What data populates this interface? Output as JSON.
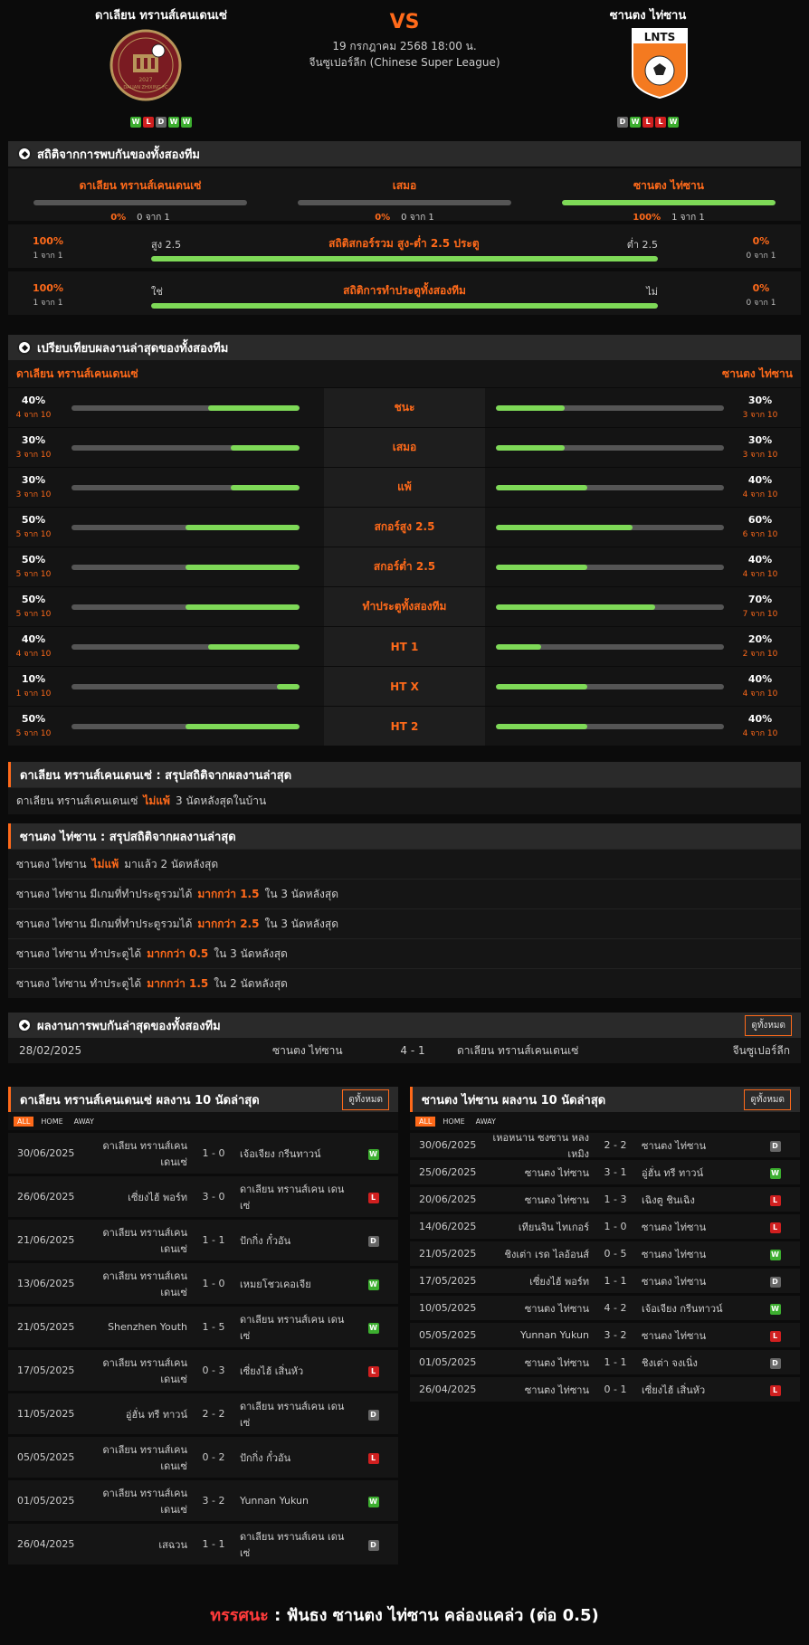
{
  "header": {
    "home": {
      "name": "ดาเลียน ทรานส์เคนเดนเซ่",
      "logo_text": "DALIAN ZHIXING FC",
      "logo_year": "2027",
      "form": [
        "W",
        "L",
        "D",
        "W",
        "W"
      ]
    },
    "away": {
      "name": "ซานตง ไท่ซาน",
      "logo_text": "LNTS",
      "form": [
        "D",
        "W",
        "L",
        "L",
        "W"
      ]
    },
    "vs": "VS",
    "date": "19 กรกฎาคม 2568 18:00 น.",
    "league": "จีนซูเปอร์ลีก (Chinese Super League)"
  },
  "h2h_stats": {
    "title": "สถิติจากการพบกันของทั้งสองทีม",
    "columns": [
      {
        "label": "ดาเลียน ทรานส์เคนเดนเซ่",
        "pct": "0%",
        "count": "0 จาก 1",
        "fill": 0
      },
      {
        "label": "เสมอ",
        "pct": "0%",
        "count": "0 จาก 1",
        "fill": 0
      },
      {
        "label": "ซานตง ไท่ซาน",
        "pct": "100%",
        "count": "1 จาก 1",
        "fill": 100
      }
    ],
    "ou": {
      "left_pct": "100%",
      "left_sub": "1 จาก 1",
      "left_label": "สูง 2.5",
      "center": "สถิติสกอร์รวม สูง-ต่ำ 2.5 ประตู",
      "right_label": "ต่ำ 2.5",
      "right_pct": "0%",
      "right_sub": "0 จาก 1",
      "fill": 100
    },
    "btts": {
      "left_pct": "100%",
      "left_sub": "1 จาก 1",
      "left_label": "ใช่",
      "center": "สถิติการทำประตูทั้งสองทีม",
      "right_label": "ไม่",
      "right_pct": "0%",
      "right_sub": "0 จาก 1",
      "fill": 100
    }
  },
  "compare": {
    "title": "เปรียบเทียบผลงานล่าสุดของทั้งสองทีม",
    "home_name": "ดาเลียน ทรานส์เคนเดนเซ่",
    "away_name": "ซานตง ไท่ซาน",
    "rows": [
      {
        "label": "ชนะ",
        "hp": "40%",
        "hs": "4 จาก 10",
        "hv": 40,
        "ap": "30%",
        "as": "3 จาก 10",
        "av": 30
      },
      {
        "label": "เสมอ",
        "hp": "30%",
        "hs": "3 จาก 10",
        "hv": 30,
        "ap": "30%",
        "as": "3 จาก 10",
        "av": 30
      },
      {
        "label": "แพ้",
        "hp": "30%",
        "hs": "3 จาก 10",
        "hv": 30,
        "ap": "40%",
        "as": "4 จาก 10",
        "av": 40
      },
      {
        "label": "สกอร์สูง 2.5",
        "hp": "50%",
        "hs": "5 จาก 10",
        "hv": 50,
        "ap": "60%",
        "as": "6 จาก 10",
        "av": 60
      },
      {
        "label": "สกอร์ต่ำ 2.5",
        "hp": "50%",
        "hs": "5 จาก 10",
        "hv": 50,
        "ap": "40%",
        "as": "4 จาก 10",
        "av": 40
      },
      {
        "label": "ทำประตูทั้งสองทีม",
        "hp": "50%",
        "hs": "5 จาก 10",
        "hv": 50,
        "ap": "70%",
        "as": "7 จาก 10",
        "av": 70
      },
      {
        "label": "HT 1",
        "hp": "40%",
        "hs": "4 จาก 10",
        "hv": 40,
        "ap": "20%",
        "as": "2 จาก 10",
        "av": 20
      },
      {
        "label": "HT X",
        "hp": "10%",
        "hs": "1 จาก 10",
        "hv": 10,
        "ap": "40%",
        "as": "4 จาก 10",
        "av": 40
      },
      {
        "label": "HT 2",
        "hp": "50%",
        "hs": "5 จาก 10",
        "hv": 50,
        "ap": "40%",
        "as": "4 จาก 10",
        "av": 40
      }
    ]
  },
  "home_summary": {
    "title": "ดาเลียน ทรานส์เคนเดนเซ่ : สรุปสถิติจากผลงานล่าสุด",
    "lines": [
      {
        "pre": "ดาเลียน ทรานส์เคนเดนเซ่",
        "hl": "ไม่แพ้",
        "post": "3  นัดหลังสุดในบ้าน"
      }
    ]
  },
  "away_summary": {
    "title": "ซานตง ไท่ซาน : สรุปสถิติจากผลงานล่าสุด",
    "lines": [
      {
        "pre": "ซานตง ไท่ซาน",
        "hl": "ไม่แพ้",
        "post": "มาแล้ว 2 นัดหลังสุด"
      },
      {
        "pre": "ซานตง ไท่ซาน  มีเกมที่ทำประตูรวมได้",
        "hl": "มากกว่า  1.5",
        "post": "ใน 3 นัดหลังสุด"
      },
      {
        "pre": "ซานตง ไท่ซาน  มีเกมที่ทำประตูรวมได้",
        "hl": "มากกว่า  2.5",
        "post": "ใน 3 นัดหลังสุด"
      },
      {
        "pre": "ซานตง ไท่ซาน  ทำประตูได้",
        "hl": "มากกว่า  0.5",
        "post": "ใน 3 นัดหลังสุด"
      },
      {
        "pre": "ซานตง ไท่ซาน  ทำประตูได้",
        "hl": "มากกว่า  1.5",
        "post": "ใน 2 นัดหลังสุด"
      }
    ]
  },
  "h2h_results": {
    "title": "ผลงานการพบกันล่าสุดของทั้งสองทีม",
    "view_all": "ดูทั้งหมด",
    "rows": [
      {
        "date": "28/02/2025",
        "home": "ซานตง ไท่ซาน",
        "score": "4 - 1",
        "away": "ดาเลียน ทรานส์เคนเดนเซ่",
        "league": "จีนซูเปอร์ลีก"
      }
    ]
  },
  "home_last10": {
    "title": "ดาเลียน ทรานส์เคนเดนเซ่ ผลงาน 10 นัดล่าสุด",
    "view_all": "ดูทั้งหมด",
    "filters": [
      "ALL",
      "HOME",
      "AWAY"
    ],
    "rows": [
      {
        "date": "30/06/2025",
        "home": "ดาเลียน ทรานส์เคน เดนเซ่",
        "score": "1 - 0",
        "away": "เจ้อเจียง กรีนทาวน์",
        "res": "W"
      },
      {
        "date": "26/06/2025",
        "home": "เซี่ยงไฮ้ พอร์ท",
        "score": "3 - 0",
        "away": "ดาเลียน ทรานส์เคน เดนเซ่",
        "res": "L"
      },
      {
        "date": "21/06/2025",
        "home": "ดาเลียน ทรานส์เคน เดนเซ่",
        "score": "1 - 1",
        "away": "ปักกิ่ง กั๋วอัน",
        "res": "D"
      },
      {
        "date": "13/06/2025",
        "home": "ดาเลียน ทรานส์เคน เดนเซ่",
        "score": "1 - 0",
        "away": "เหมยโชวเคอเจีย",
        "res": "W"
      },
      {
        "date": "21/05/2025",
        "home": "Shenzhen Youth",
        "score": "1 - 5",
        "away": "ดาเลียน ทรานส์เคน เดนเซ่",
        "res": "W"
      },
      {
        "date": "17/05/2025",
        "home": "ดาเลียน ทรานส์เคน เดนเซ่",
        "score": "0 - 3",
        "away": "เซี่ยงไฮ้ เสิ่นหัว",
        "res": "L"
      },
      {
        "date": "11/05/2025",
        "home": "อู่ฮั่น ทรี ทาวน์",
        "score": "2 - 2",
        "away": "ดาเลียน ทรานส์เคน เดนเซ่",
        "res": "D"
      },
      {
        "date": "05/05/2025",
        "home": "ดาเลียน ทรานส์เคน เดนเซ่",
        "score": "0 - 2",
        "away": "ปักกิ่ง กั๋วอัน",
        "res": "L"
      },
      {
        "date": "01/05/2025",
        "home": "ดาเลียน ทรานส์เคน เดนเซ่",
        "score": "3 - 2",
        "away": "Yunnan Yukun",
        "res": "W"
      },
      {
        "date": "26/04/2025",
        "home": "เสฉวน",
        "score": "1 - 1",
        "away": "ดาเลียน ทรานส์เคน เดนเซ่",
        "res": "D"
      }
    ]
  },
  "away_last10": {
    "title": "ซานตง ไท่ซาน ผลงาน 10 นัดล่าสุด",
    "view_all": "ดูทั้งหมด",
    "filters": [
      "ALL",
      "HOME",
      "AWAY"
    ],
    "rows": [
      {
        "date": "30/06/2025",
        "home": "เหอหนาน ซงซาน หลงเหมิง",
        "score": "2 - 2",
        "away": "ซานตง ไท่ซาน",
        "res": "D"
      },
      {
        "date": "25/06/2025",
        "home": "ซานตง ไท่ซาน",
        "score": "3 - 1",
        "away": "อู่ฮั่น ทรี ทาวน์",
        "res": "W"
      },
      {
        "date": "20/06/2025",
        "home": "ซานตง ไท่ซาน",
        "score": "1 - 3",
        "away": "เฉิงตู ชินเฉิง",
        "res": "L"
      },
      {
        "date": "14/06/2025",
        "home": "เทียนจิน ไทเกอร์",
        "score": "1 - 0",
        "away": "ซานตง ไท่ซาน",
        "res": "L"
      },
      {
        "date": "21/05/2025",
        "home": "ชิงเต่า เรด ไลอ้อนส์",
        "score": "0 - 5",
        "away": "ซานตง ไท่ซาน",
        "res": "W"
      },
      {
        "date": "17/05/2025",
        "home": "เซี่ยงไฮ้ พอร์ท",
        "score": "1 - 1",
        "away": "ซานตง ไท่ซาน",
        "res": "D"
      },
      {
        "date": "10/05/2025",
        "home": "ซานตง ไท่ซาน",
        "score": "4 - 2",
        "away": "เจ้อเจียง กรีนทาวน์",
        "res": "W"
      },
      {
        "date": "05/05/2025",
        "home": "Yunnan Yukun",
        "score": "3 - 2",
        "away": "ซานตง ไท่ซาน",
        "res": "L"
      },
      {
        "date": "01/05/2025",
        "home": "ซานตง ไท่ซาน",
        "score": "1 - 1",
        "away": "ชิงเต่า จงเนิ่ง",
        "res": "D"
      },
      {
        "date": "26/04/2025",
        "home": "ซานตง ไท่ซาน",
        "score": "0 - 1",
        "away": "เซี่ยงไฮ้ เสิ่นหัว",
        "res": "L"
      }
    ]
  },
  "verdict": {
    "label": "ทรรศนะ",
    "sep": ":",
    "text": "ฟันธง ซานตง ไท่ซาน คล่องแคล่ว (ต่อ 0.5)"
  },
  "colors": {
    "accent": "#ff6a1a",
    "win": "#3cae2f",
    "loss": "#d01f1f",
    "draw": "#666666",
    "bar": "#7ed957"
  }
}
